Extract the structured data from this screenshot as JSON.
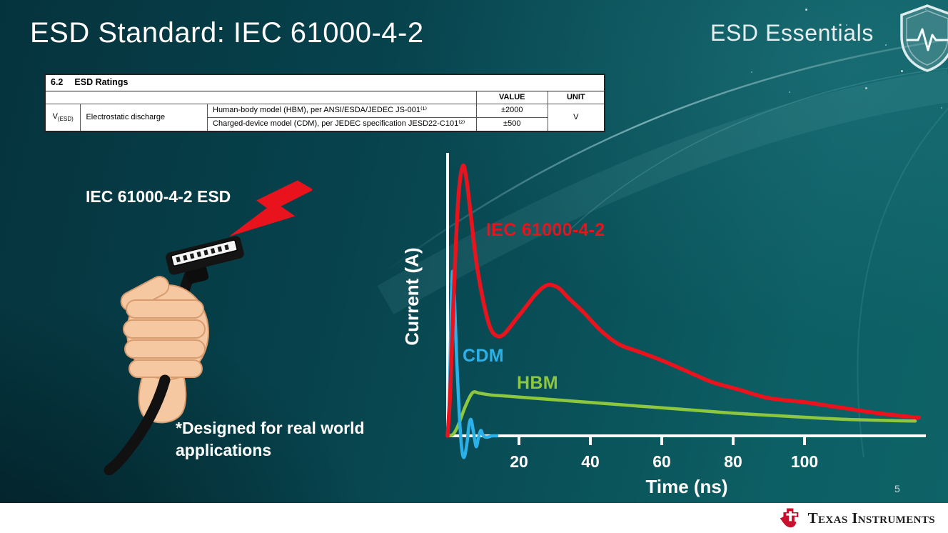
{
  "slide": {
    "title": "ESD Standard: IEC 61000-4-2",
    "program": "ESD Essentials",
    "page_number": "5",
    "brand": "Texas Instruments"
  },
  "ratings_table": {
    "section_number": "6.2",
    "section_title": "ESD Ratings",
    "headers": {
      "value": "VALUE",
      "unit": "UNIT"
    },
    "symbol": "V",
    "symbol_subscript": "(ESD)",
    "parameter": "Electrostatic discharge",
    "rows": [
      {
        "condition": "Human-body model (HBM), per ANSI/ESDA/JEDEC JS-001⁽¹⁾",
        "value": "±2000"
      },
      {
        "condition": "Charged-device model (CDM), per JEDEC specification JESD22-C101⁽²⁾",
        "value": "±500"
      }
    ],
    "unit": "V"
  },
  "left_panel": {
    "label": "IEC 61000-4-2 ESD",
    "footnote": "*Designed for real world applications"
  },
  "chart_data": {
    "type": "line",
    "title": "",
    "xlabel": "Time (ns)",
    "ylabel": "Current (A)",
    "x_ticks": [
      20,
      40,
      60,
      80,
      100
    ],
    "xlim": [
      0,
      132
    ],
    "ylim": [
      -15,
      105
    ],
    "grid": false,
    "legend_position": "inline-labels",
    "axis_color": "#ffffff",
    "series": [
      {
        "name": "HBM",
        "color": "#8dc63f",
        "width": 4.5,
        "points": [
          [
            0,
            0
          ],
          [
            1.5,
            0.5
          ],
          [
            3,
            4
          ],
          [
            5,
            11
          ],
          [
            7,
            16
          ],
          [
            9,
            15.8
          ],
          [
            12,
            15.2
          ],
          [
            16,
            14.8
          ],
          [
            20,
            14.4
          ],
          [
            26,
            13.8
          ],
          [
            32,
            13.2
          ],
          [
            40,
            12.4
          ],
          [
            48,
            11.6
          ],
          [
            56,
            10.8
          ],
          [
            64,
            10
          ],
          [
            72,
            9.2
          ],
          [
            80,
            8.4
          ],
          [
            88,
            7.8
          ],
          [
            96,
            7.2
          ],
          [
            104,
            6.6
          ],
          [
            112,
            6.1
          ],
          [
            120,
            5.8
          ],
          [
            126,
            5.6
          ],
          [
            131,
            5.5
          ]
        ]
      },
      {
        "name": "CDM",
        "color": "#2bb1e8",
        "width": 4.5,
        "points": [
          [
            0,
            0
          ],
          [
            0.5,
            14
          ],
          [
            1,
            48
          ],
          [
            1.4,
            61
          ],
          [
            1.9,
            52
          ],
          [
            2.5,
            30
          ],
          [
            3.2,
            10
          ],
          [
            3.9,
            -4
          ],
          [
            4.6,
            -8
          ],
          [
            5.4,
            -3
          ],
          [
            6,
            4
          ],
          [
            6.6,
            6
          ],
          [
            7.3,
            1
          ],
          [
            8,
            -4
          ],
          [
            8.6,
            -1
          ],
          [
            9.3,
            2
          ],
          [
            10,
            0
          ],
          [
            11,
            -0.5
          ],
          [
            12.5,
            0
          ],
          [
            13.8,
            0
          ]
        ]
      },
      {
        "name": "IEC 61000-4-2",
        "color": "#e8131d",
        "width": 5.5,
        "points": [
          [
            0,
            0
          ],
          [
            0.8,
            18
          ],
          [
            1.8,
            55
          ],
          [
            3,
            88
          ],
          [
            4.2,
            100
          ],
          [
            5.2,
            96
          ],
          [
            6.5,
            82
          ],
          [
            8,
            65
          ],
          [
            10,
            50
          ],
          [
            12,
            40
          ],
          [
            14,
            37
          ],
          [
            16,
            38
          ],
          [
            19,
            43
          ],
          [
            22,
            48
          ],
          [
            25,
            53
          ],
          [
            28,
            56
          ],
          [
            31,
            55
          ],
          [
            34,
            51
          ],
          [
            38,
            46
          ],
          [
            43,
            39
          ],
          [
            48,
            34
          ],
          [
            54,
            31
          ],
          [
            60,
            28
          ],
          [
            67,
            24
          ],
          [
            74,
            20
          ],
          [
            82,
            17
          ],
          [
            90,
            14
          ],
          [
            100,
            12.5
          ],
          [
            110,
            10.5
          ],
          [
            120,
            8.5
          ],
          [
            130,
            7
          ],
          [
            132,
            6.8
          ]
        ]
      }
    ]
  }
}
